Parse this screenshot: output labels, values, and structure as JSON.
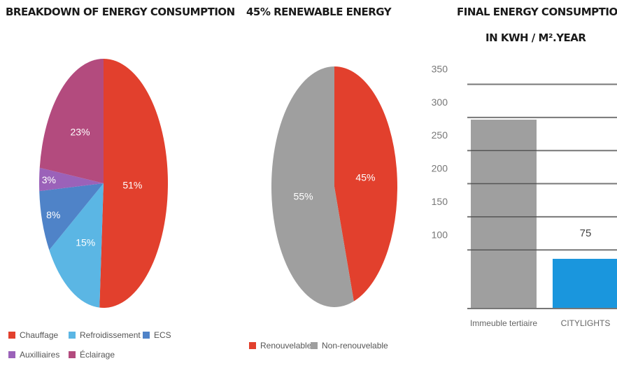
{
  "chart_data": [
    {
      "type": "pie",
      "title": "BREAKDOWN OF ENERGY CONSUMPTION",
      "slices": [
        {
          "label": "Chauffage",
          "value": 51,
          "display": "51%",
          "color": "#e2402d"
        },
        {
          "label": "Refroidissement",
          "value": 15,
          "display": "15%",
          "color": "#5bb6e4"
        },
        {
          "label": "ECS",
          "value": 8,
          "display": "8%",
          "color": "#4f83c8"
        },
        {
          "label": "Auxilliaires",
          "value": 3,
          "display": "3%",
          "color": "#9b62b9"
        },
        {
          "label": "Éclairage",
          "value": 23,
          "display": "23%",
          "color": "#b34b7e"
        }
      ]
    },
    {
      "type": "pie",
      "title": "45% RENEWABLE ENERGY",
      "slices": [
        {
          "label": "Renouvelable",
          "value": 45,
          "display": "45%",
          "color": "#e2402d"
        },
        {
          "label": "Non-renouvelable",
          "value": 55,
          "display": "55%",
          "color": "#9f9f9f"
        }
      ]
    },
    {
      "type": "bar",
      "title": "FINAL ENERGY CONSUMPTION",
      "subtitle": "IN KWH / M².YEAR",
      "categories": [
        "Immeuble tertiaire",
        "CITYLIGHTS"
      ],
      "values": [
        285,
        75
      ],
      "data_labels": [
        "",
        "75"
      ],
      "colors": [
        "#9f9f9f",
        "#1a96dd"
      ],
      "yticks": [
        100,
        150,
        200,
        250,
        300,
        350
      ],
      "ylim": [
        0,
        360
      ],
      "grid": true
    }
  ]
}
